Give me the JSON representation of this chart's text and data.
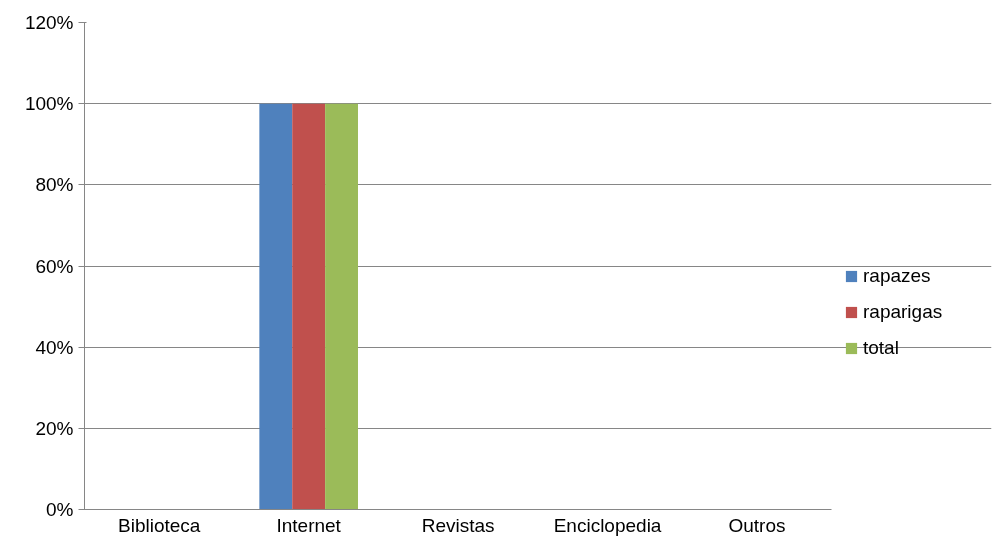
{
  "chart_data": {
    "type": "bar",
    "categories": [
      "Biblioteca",
      "Internet",
      "Revistas",
      "Enciclopedia",
      "Outros"
    ],
    "series": [
      {
        "name": "rapazes",
        "color": "#4f81bd",
        "values": [
          0,
          100,
          0,
          0,
          0
        ]
      },
      {
        "name": "raparigas",
        "color": "#c0504d",
        "values": [
          0,
          100,
          0,
          0,
          0
        ]
      },
      {
        "name": "total",
        "color": "#9bbb59",
        "values": [
          0,
          100,
          0,
          0,
          0
        ]
      }
    ],
    "ylim": [
      0,
      120
    ],
    "yticks": [
      {
        "value": 0,
        "label": "0%"
      },
      {
        "value": 20,
        "label": "20%"
      },
      {
        "value": 40,
        "label": "40%"
      },
      {
        "value": 60,
        "label": "60%"
      },
      {
        "value": 80,
        "label": "80%"
      },
      {
        "value": 100,
        "label": "100%"
      },
      {
        "value": 120,
        "label": "120%"
      }
    ],
    "grid": "y",
    "legend": "right"
  }
}
